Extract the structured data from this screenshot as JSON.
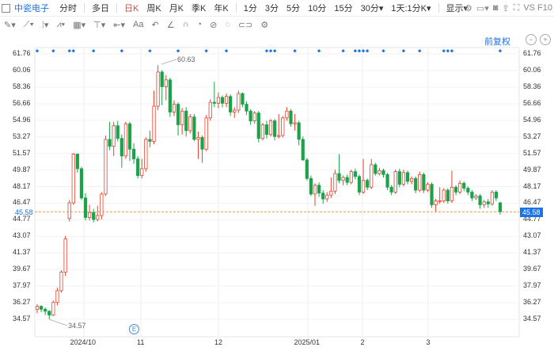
{
  "toolbar": {
    "stock_name": "中瓷电子",
    "periods": [
      "分时",
      "多日",
      "日K",
      "周K",
      "月K",
      "季K",
      "年K",
      "1分",
      "3分",
      "5分",
      "10分",
      "15分",
      "30分▾",
      "1天:1分K▾"
    ],
    "active_period": "日K",
    "display_label": "显示▾",
    "right_text": "VS F10"
  },
  "drawbar": {
    "tools": [
      "✎▾",
      "⟋▾",
      "⁞▾",
      "⩘▾",
      "▦▾",
      "⊤▾",
      "⇤▾",
      "Aa",
      "↶",
      "∠",
      "∩",
      "◔",
      "⊘",
      "◌",
      "⊂⊃",
      "⚙"
    ]
  },
  "info": {
    "restore_label": "前复权"
  },
  "axis": {
    "y_labels": [
      "61.76",
      "60.06",
      "58.36",
      "56.66",
      "54.96",
      "53.27",
      "51.57",
      "49.87",
      "48.17",
      "46.47",
      "44.77",
      "43.07",
      "41.37",
      "39.67",
      "37.97",
      "36.27",
      "34.57"
    ],
    "x_labels": [
      "2024/10",
      "11",
      "12",
      "2025/01",
      "2",
      "3"
    ],
    "current_price": "45.58"
  },
  "annotations": {
    "high": "60.63",
    "low": "34.57",
    "event_badge": "E"
  },
  "colors": {
    "up": "#e8432c",
    "down": "#1aa34a",
    "accent": "#1a73e8",
    "price_line": "#f39c3c"
  },
  "chart_data": {
    "type": "candlestick",
    "ylim": [
      34.57,
      61.76
    ],
    "high": 60.63,
    "low": 34.57,
    "last": 45.58,
    "candles": [
      [
        35.6,
        35.9,
        35.2,
        36.1
      ],
      [
        35.9,
        35.6,
        35.3,
        36.0
      ],
      [
        35.6,
        35.4,
        35.0,
        35.8
      ],
      [
        35.4,
        35.0,
        34.6,
        35.5
      ],
      [
        35.0,
        36.3,
        34.9,
        36.5
      ],
      [
        36.3,
        37.5,
        36.0,
        37.8
      ],
      [
        37.5,
        39.4,
        37.3,
        39.6
      ],
      [
        39.4,
        42.8,
        39.0,
        43.1
      ],
      [
        44.9,
        46.5,
        44.6,
        46.8
      ],
      [
        46.5,
        51.5,
        46.3,
        51.6
      ],
      [
        51.5,
        50.0,
        49.6,
        51.5
      ],
      [
        50.0,
        47.0,
        46.8,
        50.2
      ],
      [
        47.0,
        45.0,
        44.7,
        47.5
      ],
      [
        45.0,
        45.5,
        44.7,
        46.3
      ],
      [
        45.5,
        44.8,
        44.5,
        45.9
      ],
      [
        44.8,
        45.2,
        44.6,
        46.2
      ],
      [
        45.2,
        47.4,
        44.8,
        47.6
      ],
      [
        47.4,
        53.0,
        47.2,
        53.4
      ],
      [
        53.0,
        52.3,
        51.9,
        54.8
      ],
      [
        52.3,
        54.4,
        51.3,
        54.8
      ],
      [
        54.4,
        53.1,
        52.8,
        54.9
      ],
      [
        53.1,
        51.3,
        50.1,
        53.5
      ],
      [
        51.3,
        54.6,
        51.0,
        54.8
      ],
      [
        54.6,
        52.0,
        50.8,
        54.8
      ],
      [
        52.0,
        51.0,
        50.5,
        52.6
      ],
      [
        51.0,
        49.3,
        49.0,
        51.3
      ],
      [
        49.3,
        50.0,
        49.0,
        51.0
      ],
      [
        50.0,
        53.0,
        49.7,
        53.2
      ],
      [
        53.0,
        52.8,
        52.2,
        53.9
      ],
      [
        52.8,
        56.4,
        52.5,
        58.0
      ],
      [
        56.4,
        59.9,
        56.0,
        60.6
      ],
      [
        59.9,
        58.4,
        56.5,
        60.1
      ],
      [
        58.4,
        59.1,
        57.0,
        59.6
      ],
      [
        59.1,
        55.8,
        55.3,
        59.3
      ],
      [
        55.8,
        56.6,
        55.4,
        57.0
      ],
      [
        56.6,
        54.5,
        53.4,
        56.8
      ],
      [
        54.5,
        55.9,
        53.5,
        56.2
      ],
      [
        55.9,
        53.9,
        53.3,
        56.3
      ],
      [
        53.9,
        55.3,
        53.6,
        55.6
      ],
      [
        55.3,
        53.0,
        52.8,
        55.6
      ],
      [
        53.0,
        53.2,
        51.0,
        53.8
      ],
      [
        53.2,
        52.0,
        50.6,
        53.4
      ],
      [
        52.0,
        55.2,
        51.8,
        55.5
      ],
      [
        55.2,
        56.8,
        54.9,
        57.1
      ],
      [
        56.8,
        56.7,
        56.3,
        58.9
      ],
      [
        56.7,
        57.3,
        56.2,
        57.8
      ],
      [
        57.3,
        56.7,
        56.3,
        57.5
      ],
      [
        56.7,
        57.4,
        56.3,
        57.7
      ],
      [
        57.4,
        55.8,
        55.4,
        57.6
      ],
      [
        55.8,
        56.0,
        55.2,
        56.3
      ],
      [
        56.0,
        57.7,
        55.7,
        58.0
      ],
      [
        57.7,
        56.6,
        56.3,
        57.8
      ],
      [
        56.6,
        55.9,
        55.5,
        56.9
      ],
      [
        55.9,
        54.9,
        54.5,
        56.1
      ],
      [
        54.9,
        55.7,
        54.6,
        55.9
      ],
      [
        55.7,
        53.1,
        52.7,
        55.9
      ],
      [
        53.1,
        54.5,
        52.9,
        54.7
      ],
      [
        54.5,
        53.5,
        53.1,
        54.9
      ],
      [
        53.5,
        54.9,
        53.3,
        55.1
      ],
      [
        54.9,
        53.3,
        52.9,
        55.1
      ],
      [
        53.3,
        53.4,
        53.1,
        55.6
      ],
      [
        53.4,
        55.2,
        53.2,
        55.4
      ],
      [
        55.2,
        55.9,
        54.9,
        56.3
      ],
      [
        55.9,
        54.6,
        54.3,
        56.1
      ],
      [
        54.6,
        54.7,
        53.9,
        55.6
      ],
      [
        54.7,
        53.0,
        52.4,
        54.9
      ],
      [
        53.0,
        50.9,
        50.8,
        53.3
      ],
      [
        50.9,
        49.0,
        48.8,
        51.1
      ],
      [
        49.0,
        47.4,
        47.2,
        49.3
      ],
      [
        47.4,
        48.3,
        46.2,
        48.5
      ],
      [
        48.3,
        47.5,
        47.1,
        48.6
      ],
      [
        47.5,
        46.9,
        46.4,
        47.8
      ],
      [
        46.9,
        47.3,
        46.6,
        47.6
      ],
      [
        47.3,
        47.7,
        47.0,
        49.1
      ],
      [
        47.7,
        49.5,
        47.4,
        49.9
      ],
      [
        49.5,
        48.8,
        48.5,
        51.5
      ],
      [
        48.8,
        49.1,
        48.3,
        49.3
      ],
      [
        49.1,
        48.6,
        48.3,
        49.4
      ],
      [
        48.6,
        49.7,
        48.4,
        49.9
      ],
      [
        49.7,
        49.2,
        48.9,
        50.0
      ],
      [
        49.2,
        47.6,
        47.3,
        49.4
      ],
      [
        47.6,
        48.8,
        47.4,
        51.0
      ],
      [
        48.8,
        48.1,
        47.8,
        49.0
      ],
      [
        48.1,
        50.4,
        47.9,
        51.0
      ],
      [
        50.4,
        49.5,
        49.3,
        50.6
      ],
      [
        49.5,
        49.8,
        49.3,
        50.1
      ],
      [
        49.8,
        49.4,
        49.1,
        50.0
      ],
      [
        49.4,
        48.1,
        47.8,
        49.6
      ],
      [
        48.1,
        47.6,
        47.3,
        48.3
      ],
      [
        47.6,
        49.7,
        47.4,
        49.9
      ],
      [
        49.7,
        48.4,
        48.1,
        50.0
      ],
      [
        48.4,
        49.6,
        48.2,
        49.9
      ],
      [
        49.6,
        48.7,
        48.4,
        49.8
      ],
      [
        48.7,
        49.0,
        48.4,
        49.2
      ],
      [
        49.0,
        47.8,
        47.5,
        49.2
      ],
      [
        47.8,
        49.4,
        47.6,
        49.7
      ],
      [
        49.4,
        47.8,
        47.5,
        49.6
      ],
      [
        47.8,
        48.4,
        47.6,
        48.6
      ],
      [
        48.4,
        46.3,
        46.0,
        48.6
      ],
      [
        46.3,
        46.7,
        45.6,
        46.9
      ],
      [
        46.7,
        46.7,
        46.4,
        48.1
      ],
      [
        46.7,
        47.8,
        46.5,
        48.0
      ],
      [
        47.8,
        46.7,
        46.4,
        48.0
      ],
      [
        46.7,
        48.1,
        46.5,
        49.8
      ],
      [
        48.1,
        47.6,
        47.3,
        48.3
      ],
      [
        47.6,
        48.5,
        47.4,
        48.8
      ],
      [
        48.5,
        48.0,
        47.7,
        48.7
      ],
      [
        48.0,
        47.6,
        47.3,
        48.2
      ],
      [
        47.6,
        47.0,
        46.7,
        47.8
      ],
      [
        47.0,
        47.2,
        46.8,
        47.4
      ],
      [
        47.2,
        46.3,
        45.9,
        47.4
      ],
      [
        46.3,
        46.6,
        46.0,
        46.8
      ],
      [
        46.6,
        46.4,
        46.0,
        46.9
      ],
      [
        46.4,
        47.6,
        46.2,
        47.8
      ],
      [
        47.6,
        47.0,
        46.7,
        47.8
      ],
      [
        46.5,
        45.6,
        45.3,
        46.6
      ]
    ],
    "marker_indices": [
      0,
      4,
      8,
      9,
      14,
      21,
      28,
      35,
      42,
      47,
      57,
      58,
      59,
      64,
      70,
      76,
      79,
      80,
      81,
      82,
      86,
      91,
      95,
      101,
      102,
      103,
      115
    ]
  }
}
